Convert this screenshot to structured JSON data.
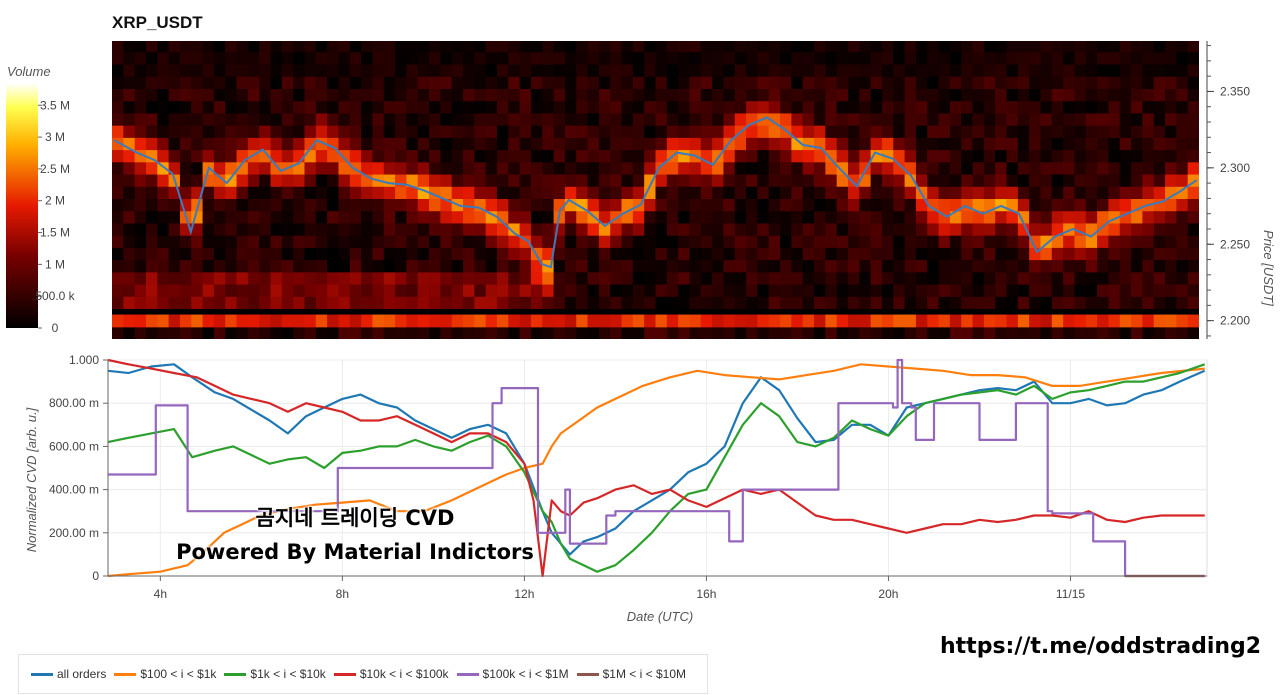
{
  "title": "XRP_USDT",
  "watermark": {
    "line1": "곰지네 트레이딩 CVD",
    "line2": "Powered By Material Indictors"
  },
  "footer_link": "https://t.me/oddstrading2",
  "colors": {
    "price_line": "#3a7bbf",
    "series": {
      "all orders": "#1f77b4",
      "$100 < i < $1k": "#ff7f0e",
      "$1k < i < $10k": "#2ca02c",
      "$10k < i < $100k": "#d62728",
      "$100k < i < $1M": "#9467bd",
      "$1M < i < $10M": "#8c564b"
    }
  },
  "chart_data": [
    {
      "type": "heatmap",
      "title": "XRP_USDT",
      "colorbar": {
        "label": "Volume",
        "ticks": [
          "0",
          "500.0 k",
          "1 M",
          "1.5 M",
          "2 M",
          "2.5 M",
          "3 M",
          "3.5 M"
        ],
        "tick_values": [
          0,
          500000,
          1000000,
          1500000,
          2000000,
          2500000,
          3000000,
          3500000
        ],
        "range": [
          0,
          3850000
        ]
      },
      "ylabel": "Price [USDT]",
      "y_ticks": [
        "2.200",
        "2.250",
        "2.300",
        "2.350"
      ],
      "y_tick_values": [
        2.2,
        2.25,
        2.3,
        2.35
      ],
      "ylim": [
        2.188,
        2.383
      ],
      "xlim_hours": [
        2.85,
        27.0
      ],
      "price_bins": [
        2.192,
        2.2,
        2.212,
        2.22,
        2.228,
        2.236,
        2.244,
        2.252,
        2.26,
        2.268,
        2.276,
        2.284,
        2.292,
        2.3,
        2.308,
        2.316,
        2.324,
        2.332,
        2.34,
        2.348,
        2.356,
        2.364,
        2.372,
        2.38
      ],
      "price_line": {
        "hours": [
          2.9,
          3.4,
          3.8,
          4.2,
          4.6,
          5.0,
          5.4,
          5.8,
          6.2,
          6.6,
          7.0,
          7.4,
          7.8,
          8.2,
          8.6,
          9.0,
          9.4,
          9.8,
          10.2,
          10.6,
          11.0,
          11.4,
          11.8,
          12.1,
          12.4,
          12.6,
          12.8,
          13.0,
          13.4,
          13.8,
          14.2,
          14.6,
          15.0,
          15.4,
          15.8,
          16.2,
          16.6,
          17.0,
          17.4,
          17.8,
          18.2,
          18.6,
          19.0,
          19.4,
          19.8,
          20.2,
          20.6,
          21.0,
          21.4,
          21.8,
          22.2,
          22.6,
          23.0,
          23.4,
          23.8,
          24.2,
          24.6,
          25.0,
          25.4,
          25.8,
          26.2,
          26.6,
          26.95
        ],
        "prices": [
          2.318,
          2.31,
          2.305,
          2.296,
          2.258,
          2.3,
          2.29,
          2.305,
          2.312,
          2.298,
          2.303,
          2.318,
          2.313,
          2.3,
          2.293,
          2.29,
          2.289,
          2.285,
          2.28,
          2.275,
          2.274,
          2.268,
          2.257,
          2.252,
          2.237,
          2.235,
          2.272,
          2.279,
          2.272,
          2.262,
          2.27,
          2.276,
          2.3,
          2.31,
          2.308,
          2.302,
          2.318,
          2.328,
          2.333,
          2.325,
          2.315,
          2.313,
          2.3,
          2.288,
          2.31,
          2.306,
          2.295,
          2.275,
          2.268,
          2.275,
          2.27,
          2.275,
          2.27,
          2.245,
          2.255,
          2.26,
          2.255,
          2.265,
          2.27,
          2.275,
          2.278,
          2.285,
          2.292
        ]
      }
    },
    {
      "type": "line",
      "xlabel": "Date (UTC)",
      "ylabel": "Normalized CVD [arb. u.]",
      "x_ticks": [
        "4h",
        "8h",
        "12h",
        "16h",
        "20h",
        "11/15"
      ],
      "x_tick_hours": [
        4,
        8,
        12,
        16,
        20,
        24
      ],
      "xlim_hours": [
        2.85,
        27.0
      ],
      "y_ticks": [
        "0",
        "200.00 m",
        "400.00 m",
        "600.00 m",
        "800.00 m",
        "1.000"
      ],
      "y_tick_values": [
        0,
        0.2,
        0.4,
        0.6,
        0.8,
        1.0
      ],
      "ylim": [
        0,
        1.0
      ],
      "grid": true,
      "legend_position": "bottom-left",
      "series": [
        {
          "name": "all orders",
          "x": [
            2.85,
            3.3,
            3.8,
            4.3,
            4.7,
            5.2,
            5.6,
            6.0,
            6.4,
            6.8,
            7.2,
            7.6,
            8.0,
            8.4,
            8.8,
            9.2,
            9.6,
            10.0,
            10.4,
            10.8,
            11.2,
            11.6,
            12.0,
            12.4,
            12.6,
            12.8,
            13.0,
            13.3,
            13.6,
            14.0,
            14.4,
            14.8,
            15.2,
            15.6,
            16.0,
            16.4,
            16.8,
            17.2,
            17.6,
            18.0,
            18.4,
            18.8,
            19.2,
            19.6,
            20.0,
            20.4,
            20.8,
            21.2,
            21.6,
            22.0,
            22.4,
            22.8,
            23.2,
            23.6,
            24.0,
            24.4,
            24.8,
            25.2,
            25.6,
            26.0,
            26.4,
            26.95
          ],
          "y": [
            0.95,
            0.94,
            0.97,
            0.98,
            0.92,
            0.85,
            0.82,
            0.77,
            0.72,
            0.66,
            0.74,
            0.78,
            0.82,
            0.84,
            0.8,
            0.78,
            0.72,
            0.68,
            0.64,
            0.68,
            0.7,
            0.66,
            0.52,
            0.3,
            0.2,
            0.15,
            0.1,
            0.16,
            0.18,
            0.22,
            0.3,
            0.35,
            0.4,
            0.48,
            0.52,
            0.6,
            0.8,
            0.92,
            0.86,
            0.73,
            0.62,
            0.63,
            0.7,
            0.7,
            0.65,
            0.78,
            0.8,
            0.82,
            0.84,
            0.86,
            0.87,
            0.86,
            0.9,
            0.8,
            0.8,
            0.82,
            0.79,
            0.8,
            0.84,
            0.86,
            0.9,
            0.95
          ]
        },
        {
          "name": "$100 < i < $1k",
          "x": [
            2.85,
            3.4,
            4.0,
            4.6,
            5.0,
            5.4,
            5.8,
            6.2,
            6.8,
            7.4,
            8.0,
            8.6,
            9.2,
            9.8,
            10.4,
            11.0,
            11.6,
            12.0,
            12.4,
            12.6,
            12.8,
            13.2,
            13.6,
            14.0,
            14.6,
            15.2,
            15.8,
            16.4,
            17.0,
            17.6,
            18.2,
            18.8,
            19.4,
            20.0,
            20.6,
            21.2,
            21.8,
            22.4,
            23.0,
            23.6,
            24.2,
            24.8,
            25.4,
            26.0,
            26.95
          ],
          "y": [
            0.0,
            0.01,
            0.02,
            0.05,
            0.12,
            0.2,
            0.24,
            0.28,
            0.31,
            0.33,
            0.34,
            0.35,
            0.3,
            0.3,
            0.35,
            0.41,
            0.47,
            0.5,
            0.52,
            0.6,
            0.66,
            0.72,
            0.78,
            0.82,
            0.88,
            0.92,
            0.95,
            0.93,
            0.92,
            0.91,
            0.93,
            0.95,
            0.98,
            0.97,
            0.96,
            0.95,
            0.93,
            0.93,
            0.92,
            0.88,
            0.88,
            0.9,
            0.92,
            0.94,
            0.96
          ]
        },
        {
          "name": "$1k < i < $10k",
          "x": [
            2.85,
            3.3,
            3.8,
            4.3,
            4.7,
            5.2,
            5.6,
            6.0,
            6.4,
            6.8,
            7.2,
            7.6,
            8.0,
            8.4,
            8.8,
            9.2,
            9.6,
            10.0,
            10.4,
            10.8,
            11.2,
            11.6,
            12.0,
            12.4,
            12.6,
            12.8,
            13.0,
            13.3,
            13.6,
            14.0,
            14.4,
            14.8,
            15.2,
            15.6,
            16.0,
            16.4,
            16.8,
            17.2,
            17.6,
            18.0,
            18.4,
            18.8,
            19.2,
            19.6,
            20.0,
            20.4,
            20.8,
            21.2,
            21.6,
            22.0,
            22.4,
            22.8,
            23.2,
            23.6,
            24.0,
            24.4,
            24.8,
            25.2,
            25.6,
            26.0,
            26.4,
            26.95
          ],
          "y": [
            0.62,
            0.64,
            0.66,
            0.68,
            0.55,
            0.58,
            0.6,
            0.56,
            0.52,
            0.54,
            0.55,
            0.5,
            0.57,
            0.58,
            0.6,
            0.6,
            0.63,
            0.6,
            0.58,
            0.62,
            0.65,
            0.6,
            0.48,
            0.3,
            0.25,
            0.15,
            0.08,
            0.05,
            0.02,
            0.05,
            0.12,
            0.2,
            0.3,
            0.38,
            0.4,
            0.55,
            0.7,
            0.8,
            0.74,
            0.62,
            0.6,
            0.64,
            0.72,
            0.68,
            0.65,
            0.74,
            0.8,
            0.82,
            0.84,
            0.85,
            0.86,
            0.84,
            0.88,
            0.82,
            0.85,
            0.86,
            0.88,
            0.9,
            0.9,
            0.92,
            0.94,
            0.98
          ]
        },
        {
          "name": "$10k < i < $100k",
          "x": [
            2.85,
            3.3,
            3.8,
            4.3,
            4.8,
            5.2,
            5.6,
            6.0,
            6.4,
            6.8,
            7.2,
            7.6,
            8.0,
            8.4,
            8.8,
            9.2,
            9.6,
            10.0,
            10.4,
            10.8,
            11.2,
            11.6,
            12.0,
            12.2,
            12.4,
            12.6,
            12.8,
            13.0,
            13.3,
            13.6,
            14.0,
            14.4,
            14.8,
            15.2,
            15.6,
            16.0,
            16.4,
            16.8,
            17.2,
            17.6,
            18.0,
            18.4,
            18.8,
            19.2,
            19.6,
            20.0,
            20.4,
            20.8,
            21.2,
            21.6,
            22.0,
            22.4,
            22.8,
            23.2,
            23.6,
            24.0,
            24.4,
            24.8,
            25.2,
            25.6,
            26.0,
            26.4,
            26.95
          ],
          "y": [
            1.0,
            0.98,
            0.96,
            0.94,
            0.92,
            0.88,
            0.84,
            0.82,
            0.8,
            0.76,
            0.8,
            0.78,
            0.76,
            0.72,
            0.72,
            0.74,
            0.7,
            0.66,
            0.62,
            0.66,
            0.66,
            0.62,
            0.52,
            0.35,
            0.0,
            0.35,
            0.3,
            0.28,
            0.34,
            0.36,
            0.4,
            0.42,
            0.38,
            0.4,
            0.35,
            0.32,
            0.36,
            0.4,
            0.38,
            0.4,
            0.34,
            0.28,
            0.26,
            0.26,
            0.24,
            0.22,
            0.2,
            0.22,
            0.24,
            0.24,
            0.26,
            0.25,
            0.26,
            0.28,
            0.28,
            0.27,
            0.3,
            0.26,
            0.25,
            0.27,
            0.28,
            0.28,
            0.28
          ]
        },
        {
          "name": "$100k < i < $1M",
          "x": [
            2.85,
            3.9,
            3.9,
            4.6,
            4.6,
            7.9,
            7.9,
            11.3,
            11.3,
            11.5,
            11.5,
            12.3,
            12.3,
            12.9,
            12.9,
            13.0,
            13.0,
            13.8,
            13.8,
            14.0,
            14.0,
            16.5,
            16.5,
            16.8,
            16.8,
            18.9,
            18.9,
            20.1,
            20.1,
            20.2,
            20.2,
            20.3,
            20.3,
            20.5,
            20.5,
            20.6,
            20.6,
            21.0,
            21.0,
            22.0,
            22.0,
            22.8,
            22.8,
            23.5,
            23.5,
            23.6,
            23.6,
            24.5,
            24.5,
            25.2,
            25.2,
            26.95
          ],
          "y": [
            0.47,
            0.47,
            0.79,
            0.79,
            0.3,
            0.3,
            0.5,
            0.5,
            0.8,
            0.8,
            0.87,
            0.87,
            0.2,
            0.2,
            0.4,
            0.4,
            0.15,
            0.15,
            0.28,
            0.28,
            0.3,
            0.3,
            0.16,
            0.16,
            0.4,
            0.4,
            0.8,
            0.8,
            0.78,
            0.78,
            1.0,
            1.0,
            0.8,
            0.8,
            0.78,
            0.78,
            0.63,
            0.63,
            0.8,
            0.8,
            0.63,
            0.63,
            0.8,
            0.8,
            0.3,
            0.3,
            0.29,
            0.29,
            0.16,
            0.16,
            0.0,
            0.0
          ]
        },
        {
          "name": "$1M < i < $10M",
          "x": [
            25.2,
            26.95
          ],
          "y": [
            0.0,
            0.0
          ]
        }
      ]
    }
  ]
}
